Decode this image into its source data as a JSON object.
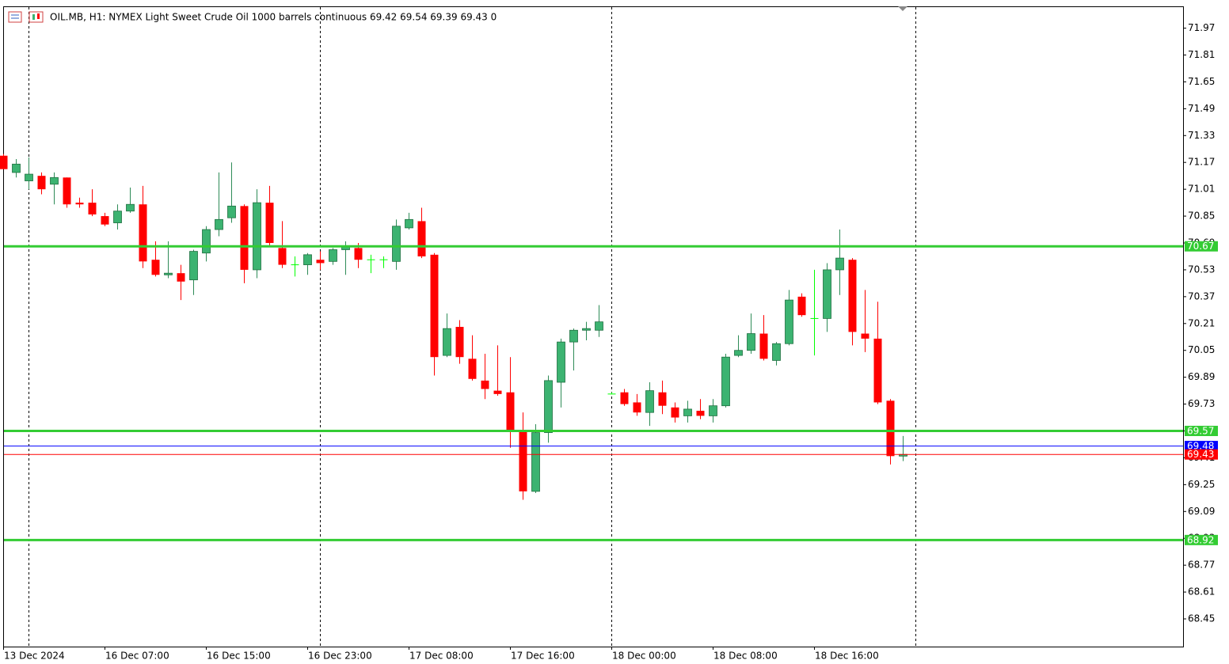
{
  "chart_data": {
    "type": "candlestick",
    "title": "OIL.MB, H1:  NYMEX Light Sweet Crude Oil 1000 barrels continuous  69.42 69.54 69.39 69.43  0",
    "categories": [
      "13 Dec 2024",
      null,
      null,
      null,
      null,
      null,
      null,
      null,
      "16 Dec 07:00",
      null,
      null,
      null,
      null,
      null,
      null,
      null,
      "16 Dec 15:00",
      null,
      null,
      null,
      null,
      null,
      null,
      null,
      "16 Dec 23:00",
      null,
      null,
      null,
      null,
      null,
      null,
      null,
      "17 Dec 08:00",
      null,
      null,
      null,
      null,
      null,
      null,
      null,
      "17 Dec 16:00",
      null,
      null,
      null,
      null,
      null,
      null,
      null,
      "18 Dec 00:00",
      null,
      null,
      null,
      null,
      null,
      null,
      null,
      "18 Dec 08:00",
      null,
      null,
      null,
      null,
      null,
      null,
      null,
      "18 Dec 16:00",
      null,
      null,
      null,
      null,
      null,
      null,
      null
    ],
    "open": [
      71.21,
      71.11,
      71.06,
      71.09,
      71.04,
      71.08,
      70.93,
      70.93,
      70.85,
      70.81,
      70.88,
      70.92,
      70.59,
      70.5,
      70.51,
      70.47,
      70.63,
      70.77,
      70.84,
      70.91,
      70.53,
      70.93,
      70.66,
      70.56,
      70.56,
      70.59,
      70.58,
      70.65,
      70.66,
      70.59,
      70.59,
      70.58,
      70.78,
      70.82,
      70.62,
      70.02,
      70.19,
      70.0,
      69.87,
      69.81,
      69.8,
      69.57,
      69.21,
      69.56,
      69.86,
      70.1,
      70.17,
      70.17,
      69.79,
      69.8,
      69.74,
      69.68,
      69.8,
      69.71,
      69.66,
      69.69,
      69.66,
      69.72,
      70.02,
      70.05,
      70.15,
      69.99,
      70.09,
      70.37,
      70.24,
      70.24,
      70.53,
      70.59,
      70.15,
      70.12,
      69.75,
      69.42
    ],
    "high": [
      71.22,
      71.19,
      71.2,
      71.11,
      71.11,
      71.08,
      70.96,
      71.01,
      70.87,
      70.92,
      71.02,
      71.03,
      70.7,
      70.7,
      70.56,
      70.65,
      70.79,
      71.11,
      71.17,
      70.92,
      71.01,
      71.03,
      70.82,
      70.61,
      70.63,
      70.64,
      70.66,
      70.7,
      70.69,
      70.62,
      70.61,
      70.83,
      70.87,
      70.9,
      70.63,
      70.27,
      70.23,
      70.14,
      70.03,
      70.08,
      70.01,
      69.68,
      69.61,
      69.9,
      70.12,
      70.18,
      70.22,
      70.32,
      69.8,
      69.82,
      69.79,
      69.86,
      69.87,
      69.74,
      69.75,
      69.76,
      69.76,
      70.03,
      70.14,
      70.27,
      70.26,
      70.1,
      70.41,
      70.39,
      70.53,
      70.57,
      70.77,
      70.6,
      70.41,
      70.34,
      69.76,
      69.54
    ],
    "low": [
      71.13,
      71.08,
      71.01,
      70.98,
      70.92,
      70.9,
      70.9,
      70.85,
      70.79,
      70.77,
      70.87,
      70.54,
      70.49,
      70.48,
      70.35,
      70.38,
      70.58,
      70.73,
      70.81,
      70.45,
      70.48,
      70.67,
      70.54,
      70.49,
      70.5,
      70.53,
      70.56,
      70.5,
      70.54,
      70.51,
      70.54,
      70.53,
      70.77,
      70.6,
      69.9,
      70.01,
      69.97,
      69.87,
      69.76,
      69.78,
      69.47,
      69.16,
      69.2,
      69.5,
      69.71,
      69.93,
      70.11,
      70.13,
      69.79,
      69.72,
      69.66,
      69.6,
      69.67,
      69.62,
      69.62,
      69.64,
      69.62,
      69.71,
      70.01,
      70.03,
      69.99,
      69.96,
      70.08,
      70.25,
      70.02,
      70.16,
      70.38,
      70.08,
      70.04,
      69.73,
      69.37,
      69.39
    ],
    "close": [
      71.13,
      71.16,
      71.1,
      71.01,
      71.08,
      70.92,
      70.92,
      70.86,
      70.8,
      70.88,
      70.92,
      70.58,
      70.5,
      70.51,
      70.46,
      70.64,
      70.77,
      70.83,
      70.91,
      70.53,
      70.93,
      70.69,
      70.56,
      70.56,
      70.62,
      70.57,
      70.65,
      70.67,
      70.59,
      70.59,
      70.59,
      70.79,
      70.83,
      70.61,
      70.01,
      70.18,
      70.01,
      69.88,
      69.82,
      69.79,
      69.57,
      69.21,
      69.56,
      69.87,
      70.1,
      70.17,
      70.18,
      70.22,
      69.79,
      69.73,
      69.68,
      69.81,
      69.72,
      69.65,
      69.7,
      69.66,
      69.72,
      70.01,
      70.05,
      70.15,
      70.0,
      70.09,
      70.35,
      70.26,
      70.24,
      70.53,
      70.6,
      70.16,
      70.12,
      69.74,
      69.42,
      69.43
    ],
    "colors": {
      "up": "#3cb371",
      "down": "#ff0000",
      "doji": "#00ff00"
    },
    "ylim": [
      68.285,
      72.1
    ],
    "yticks": [
      71.97,
      71.81,
      71.65,
      71.49,
      71.33,
      71.17,
      71.01,
      70.85,
      70.69,
      70.53,
      70.37,
      70.21,
      70.05,
      69.89,
      69.73,
      69.57,
      69.41,
      69.25,
      69.09,
      68.93,
      68.77,
      68.61,
      68.45
    ],
    "levels": [
      {
        "value": 70.67,
        "color": "#33cc33"
      },
      {
        "value": 69.57,
        "color": "#33cc33"
      },
      {
        "value": 68.92,
        "color": "#33cc33"
      }
    ],
    "price_lines": [
      {
        "value": 69.48,
        "color": "#0000ff"
      },
      {
        "value": 69.43,
        "color": "#ff0000"
      }
    ]
  }
}
